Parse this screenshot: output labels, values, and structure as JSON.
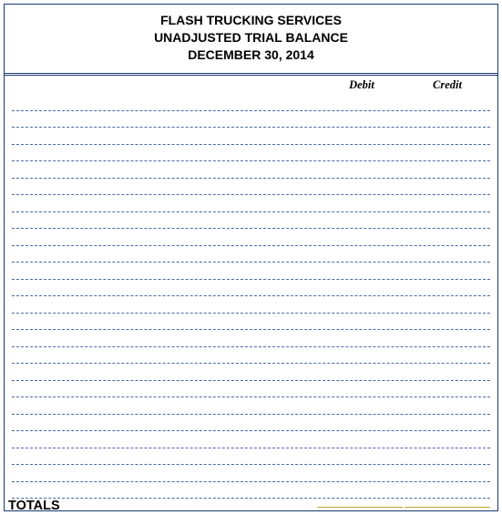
{
  "header": {
    "company": "FLASH TRUCKING SERVICES",
    "report_title": "UNADJUSTED TRIAL BALANCE",
    "report_date": "DECEMBER 30, 2014"
  },
  "columns": {
    "debit_label": "Debit",
    "credit_label": "Credit"
  },
  "ledger": {
    "row_count": 24,
    "line_color": "#4a6aa8",
    "line_style": "dashed"
  },
  "totals": {
    "label": "TOTALS",
    "underline_color": "#c0a030"
  },
  "styling": {
    "border_color": "#1a3a6e",
    "background_color": "#ffffff",
    "text_color": "#000000",
    "header_fontsize": 14,
    "column_header_fontsize": 12.5,
    "totals_fontsize": 14.5,
    "debit_col_width": 94,
    "credit_col_width": 94
  }
}
